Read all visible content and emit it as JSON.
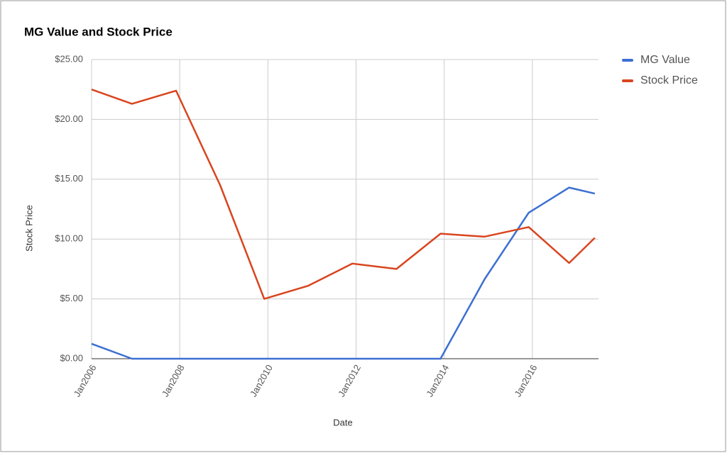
{
  "chart_data": {
    "type": "line",
    "title": "MG Value and Stock Price",
    "x_label": "Date",
    "y_label": "Stock Price",
    "x": [
      "2006-01",
      "2006-12",
      "2007-12",
      "2008-12",
      "2009-12",
      "2010-12",
      "2011-12",
      "2012-12",
      "2013-12",
      "2014-12",
      "2015-12",
      "2016-11",
      "2017-06"
    ],
    "series": [
      {
        "name": "MG Value",
        "color": "#3c6fd1",
        "values": [
          1.25,
          0,
          0,
          0,
          0,
          0,
          0,
          0,
          0,
          6.65,
          12.2,
          14.3,
          13.8
        ]
      },
      {
        "name": "Stock Price",
        "color": "#d9451f",
        "values": [
          22.5,
          21.3,
          22.4,
          14.5,
          5.0,
          6.1,
          7.95,
          7.5,
          10.45,
          10.2,
          11.0,
          8.0,
          10.1
        ]
      }
    ],
    "xlim": [
      "2006-01",
      "2017-07"
    ],
    "xticks": [
      {
        "value": "2006-01",
        "label": "Jan2006"
      },
      {
        "value": "2008-01",
        "label": "Jan2008"
      },
      {
        "value": "2010-01",
        "label": "Jan2010"
      },
      {
        "value": "2012-01",
        "label": "Jan2012"
      },
      {
        "value": "2014-01",
        "label": "Jan2014"
      },
      {
        "value": "2016-01",
        "label": "Jan2016"
      }
    ],
    "ylim": [
      0,
      25
    ],
    "yticks": [
      {
        "value": 0,
        "label": "$0.00"
      },
      {
        "value": 5,
        "label": "$5.00"
      },
      {
        "value": 10,
        "label": "$10.00"
      },
      {
        "value": 15,
        "label": "$15.00"
      },
      {
        "value": 20,
        "label": "$20.00"
      },
      {
        "value": 25,
        "label": "$25.00"
      }
    ],
    "grid": true,
    "legend": "right"
  }
}
